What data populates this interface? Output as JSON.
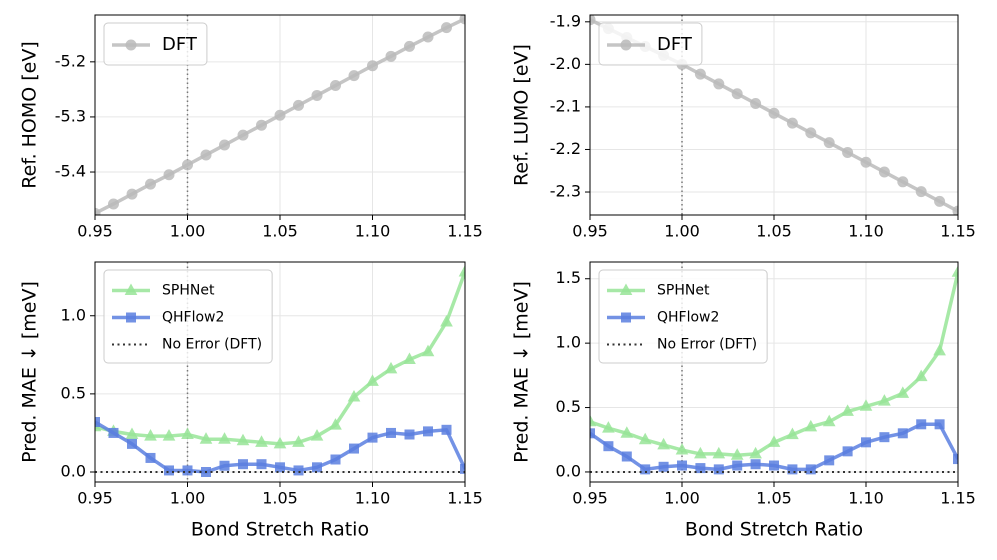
{
  "chart_data": [
    {
      "type": "line",
      "ylabel": "Ref. HOMO [eV]",
      "x": [
        0.95,
        0.96,
        0.97,
        0.98,
        0.99,
        1.0,
        1.01,
        1.02,
        1.03,
        1.04,
        1.05,
        1.06,
        1.07,
        1.08,
        1.09,
        1.1,
        1.11,
        1.12,
        1.13,
        1.14,
        1.15
      ],
      "series": [
        {
          "name": "DFT",
          "color": "#bbbbbb",
          "marker": "circle",
          "values": [
            -5.475,
            -5.458,
            -5.44,
            -5.422,
            -5.405,
            -5.387,
            -5.369,
            -5.351,
            -5.333,
            -5.315,
            -5.297,
            -5.279,
            -5.261,
            -5.243,
            -5.225,
            -5.207,
            -5.19,
            -5.172,
            -5.155,
            -5.138,
            -5.122
          ]
        }
      ],
      "xlim": [
        0.95,
        1.15
      ],
      "xticks": [
        0.95,
        {
          "value": 1.0,
          "label": "1.00"
        },
        1.05,
        {
          "value": 1.1,
          "label": "1.10"
        },
        1.15
      ],
      "ylim": [
        -5.478,
        -5.115
      ],
      "yticks": [
        {
          "value": -5.4,
          "label": "-5.4"
        },
        {
          "value": -5.3,
          "label": "-5.3"
        },
        {
          "value": -5.2,
          "label": "-5.2"
        }
      ],
      "vline": 1.0,
      "grid": true,
      "legend": "upper left"
    },
    {
      "type": "line",
      "ylabel": "Ref. LUMO [eV]",
      "x": [
        0.95,
        0.96,
        0.97,
        0.98,
        0.99,
        1.0,
        1.01,
        1.02,
        1.03,
        1.04,
        1.05,
        1.06,
        1.07,
        1.08,
        1.09,
        1.1,
        1.11,
        1.12,
        1.13,
        1.14,
        1.15
      ],
      "series": [
        {
          "name": "DFT",
          "color": "#bbbbbb",
          "marker": "circle",
          "values": [
            -1.895,
            -1.916,
            -1.937,
            -1.958,
            -1.979,
            -2.0,
            -2.023,
            -2.046,
            -2.069,
            -2.092,
            -2.115,
            -2.138,
            -2.161,
            -2.184,
            -2.207,
            -2.23,
            -2.253,
            -2.276,
            -2.299,
            -2.322,
            -2.345
          ]
        }
      ],
      "xlim": [
        0.95,
        1.15
      ],
      "xticks": [
        0.95,
        {
          "value": 1.0,
          "label": "1.00"
        },
        1.05,
        {
          "value": 1.1,
          "label": "1.10"
        },
        1.15
      ],
      "ylim": [
        -2.354,
        -1.884
      ],
      "yticks": [
        {
          "value": -2.3,
          "label": "-2.3"
        },
        {
          "value": -2.2,
          "label": "-2.2"
        },
        {
          "value": -2.1,
          "label": "-2.1"
        },
        {
          "value": -2.0,
          "label": "-2.0"
        },
        {
          "value": -1.9,
          "label": "-1.9"
        }
      ],
      "vline": 1.0,
      "grid": true,
      "legend": "upper left"
    },
    {
      "type": "line",
      "ylabel": "Pred. MAE ↓ [meV]",
      "xlabel": "Bond Stretch Ratio",
      "x": [
        0.95,
        0.96,
        0.97,
        0.98,
        0.99,
        1.0,
        1.01,
        1.02,
        1.03,
        1.04,
        1.05,
        1.06,
        1.07,
        1.08,
        1.09,
        1.1,
        1.11,
        1.12,
        1.13,
        1.14,
        1.15
      ],
      "series": [
        {
          "name": "SPHNet",
          "color": "#98e598",
          "marker": "triangle",
          "values": [
            0.29,
            0.26,
            0.24,
            0.23,
            0.23,
            0.24,
            0.21,
            0.21,
            0.2,
            0.19,
            0.18,
            0.19,
            0.23,
            0.3,
            0.48,
            0.58,
            0.66,
            0.72,
            0.77,
            0.96,
            1.28
          ]
        },
        {
          "name": "QHFlow2",
          "color": "#5b7fe0",
          "marker": "square",
          "values": [
            0.32,
            0.25,
            0.18,
            0.09,
            0.01,
            0.01,
            0.0,
            0.04,
            0.05,
            0.05,
            0.03,
            0.01,
            0.03,
            0.08,
            0.15,
            0.22,
            0.25,
            0.24,
            0.26,
            0.27,
            0.02
          ]
        },
        {
          "name": "No Error (DFT)",
          "color": "#333333",
          "dotted": true,
          "values": [
            0,
            0,
            0,
            0,
            0,
            0,
            0,
            0,
            0,
            0,
            0,
            0,
            0,
            0,
            0,
            0,
            0,
            0,
            0,
            0,
            0
          ]
        }
      ],
      "xlim": [
        0.95,
        1.15
      ],
      "xticks": [
        0.95,
        {
          "value": 1.0,
          "label": "1.00"
        },
        1.05,
        {
          "value": 1.1,
          "label": "1.10"
        },
        1.15
      ],
      "ylim": [
        -0.064,
        1.344
      ],
      "yticks": [
        {
          "value": 0,
          "label": "0.0"
        },
        0.5,
        {
          "value": 1.0,
          "label": "1.0"
        }
      ],
      "vline": 1.0,
      "grid": true,
      "legend": "upper left"
    },
    {
      "type": "line",
      "ylabel": "Pred. MAE ↓ [meV]",
      "xlabel": "Bond Stretch Ratio",
      "x": [
        0.95,
        0.96,
        0.97,
        0.98,
        0.99,
        1.0,
        1.01,
        1.02,
        1.03,
        1.04,
        1.05,
        1.06,
        1.07,
        1.08,
        1.09,
        1.1,
        1.11,
        1.12,
        1.13,
        1.14,
        1.15
      ],
      "series": [
        {
          "name": "SPHNet",
          "color": "#98e598",
          "marker": "triangle",
          "values": [
            0.39,
            0.34,
            0.3,
            0.25,
            0.21,
            0.17,
            0.14,
            0.14,
            0.13,
            0.14,
            0.23,
            0.29,
            0.35,
            0.39,
            0.47,
            0.51,
            0.55,
            0.61,
            0.74,
            0.94,
            1.55
          ]
        },
        {
          "name": "QHFlow2",
          "color": "#5b7fe0",
          "marker": "square",
          "values": [
            0.3,
            0.2,
            0.12,
            0.02,
            0.04,
            0.05,
            0.03,
            0.02,
            0.05,
            0.06,
            0.05,
            0.02,
            0.02,
            0.09,
            0.16,
            0.23,
            0.27,
            0.3,
            0.37,
            0.37,
            0.1
          ]
        },
        {
          "name": "No Error (DFT)",
          "color": "#333333",
          "dotted": true,
          "values": [
            0,
            0,
            0,
            0,
            0,
            0,
            0,
            0,
            0,
            0,
            0,
            0,
            0,
            0,
            0,
            0,
            0,
            0,
            0,
            0,
            0
          ]
        }
      ],
      "xlim": [
        0.95,
        1.15
      ],
      "xticks": [
        0.95,
        {
          "value": 1.0,
          "label": "1.00"
        },
        1.05,
        {
          "value": 1.1,
          "label": "1.10"
        },
        1.15
      ],
      "ylim": [
        -0.078,
        1.63
      ],
      "yticks": [
        {
          "value": 0,
          "label": "0.0"
        },
        0.5,
        {
          "value": 1.0,
          "label": "1.0"
        },
        1.5
      ],
      "vline": 1.0,
      "grid": true,
      "legend": "upper left"
    }
  ]
}
